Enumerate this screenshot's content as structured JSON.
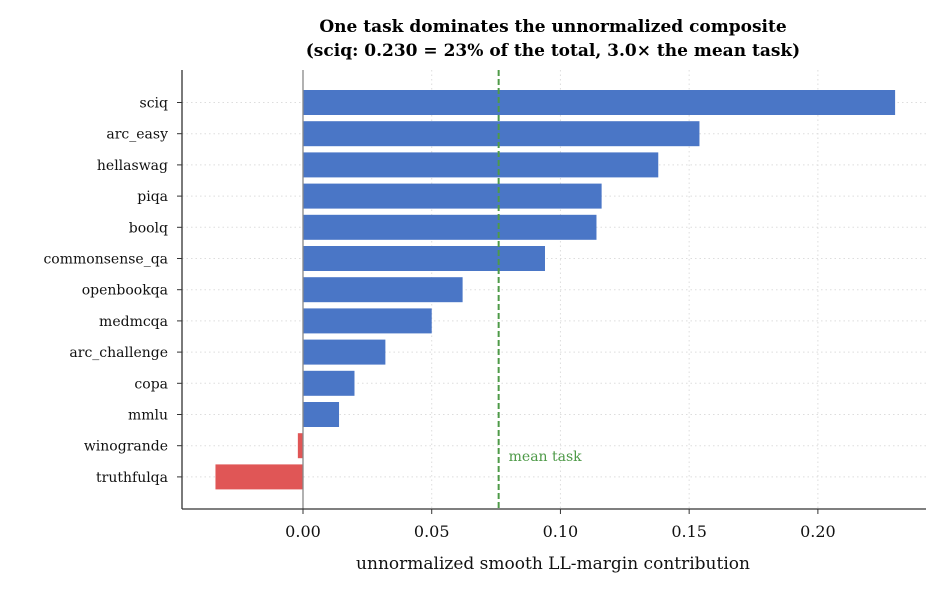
{
  "chart_data": {
    "type": "bar",
    "orientation": "horizontal",
    "title_lines": [
      "One task dominates the unnormalized composite",
      "(sciq: 0.230 = 23% of the total, 3.0× the mean task)"
    ],
    "xlabel": "unnormalized smooth LL-margin contribution",
    "ylabel": "",
    "categories": [
      "sciq",
      "arc_easy",
      "hellaswag",
      "piqa",
      "boolq",
      "commonsense_qa",
      "openbookqa",
      "medmcqa",
      "arc_challenge",
      "copa",
      "mmlu",
      "winogrande",
      "truthfulqa"
    ],
    "values": [
      0.23,
      0.154,
      0.138,
      0.116,
      0.114,
      0.094,
      0.062,
      0.05,
      0.032,
      0.02,
      0.014,
      -0.002,
      -0.034
    ],
    "xlim": [
      -0.047,
      0.242
    ],
    "xticks": [
      0.0,
      0.05,
      0.1,
      0.15,
      0.2
    ],
    "xtick_labels": [
      "0.00",
      "0.05",
      "0.10",
      "0.15",
      "0.20"
    ],
    "mean_line": {
      "value": 0.076,
      "label": "mean task",
      "color": "#4e9a48"
    },
    "colors": {
      "positive": "#4a76c6",
      "negative": "#e05656"
    },
    "grid": true,
    "legend": "none"
  }
}
